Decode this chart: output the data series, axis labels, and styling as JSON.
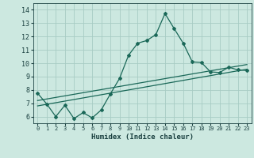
{
  "title": "",
  "xlabel": "Humidex (Indice chaleur)",
  "xlim": [
    -0.5,
    23.5
  ],
  "ylim": [
    5.5,
    14.5
  ],
  "xticks": [
    0,
    1,
    2,
    3,
    4,
    5,
    6,
    7,
    8,
    9,
    10,
    11,
    12,
    13,
    14,
    15,
    16,
    17,
    18,
    19,
    20,
    21,
    22,
    23
  ],
  "yticks": [
    6,
    7,
    8,
    9,
    10,
    11,
    12,
    13,
    14
  ],
  "bg_color": "#cce8e0",
  "grid_color": "#a8ccc4",
  "line_color": "#1a6858",
  "line1_x": [
    0,
    1,
    2,
    3,
    4,
    5,
    6,
    7,
    8,
    9,
    10,
    11,
    12,
    13,
    14,
    15,
    16,
    17,
    18,
    19,
    20,
    21,
    22,
    23
  ],
  "line1_y": [
    7.75,
    6.95,
    6.0,
    6.85,
    5.85,
    6.3,
    5.9,
    6.5,
    7.7,
    8.85,
    10.6,
    11.5,
    11.7,
    12.15,
    13.72,
    12.6,
    11.5,
    10.1,
    10.05,
    9.35,
    9.3,
    9.7,
    9.5,
    9.45
  ],
  "line2_x": [
    0,
    23
  ],
  "line2_y": [
    7.2,
    9.9
  ],
  "line3_x": [
    0,
    23
  ],
  "line3_y": [
    6.8,
    9.55
  ]
}
